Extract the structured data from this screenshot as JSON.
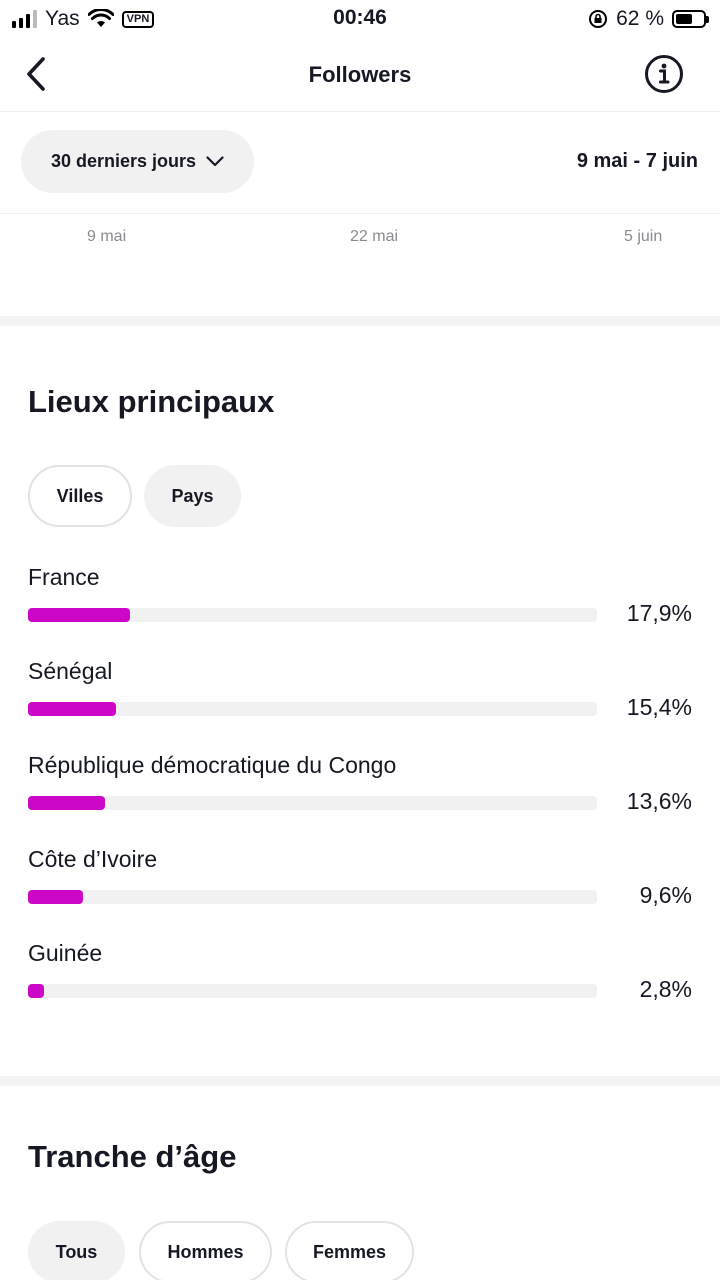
{
  "status_bar": {
    "carrier": "Yas",
    "vpn": "VPN",
    "time": "00:46",
    "battery": "62 %",
    "battery_level": 0.62
  },
  "header": {
    "title": "Followers"
  },
  "filter": {
    "range_label": "30 derniers jours",
    "date_range": "9 mai - 7 juin"
  },
  "chart_x_axis": {
    "ticks": [
      "9 mai",
      "22 mai",
      "5 juin"
    ]
  },
  "locations": {
    "title": "Lieux principaux",
    "tabs": [
      "Villes",
      "Pays"
    ],
    "items": [
      {
        "name": "France",
        "percent_label": "17,9%",
        "value": 17.9
      },
      {
        "name": "Sénégal",
        "percent_label": "15,4%",
        "value": 15.4
      },
      {
        "name": "République démocratique du Congo",
        "percent_label": "13,6%",
        "value": 13.6
      },
      {
        "name": "Côte d’Ivoire",
        "percent_label": "9,6%",
        "value": 9.6
      },
      {
        "name": "Guinée",
        "percent_label": "2,8%",
        "value": 2.8
      }
    ],
    "bar_color": "#cc07c8"
  },
  "age": {
    "title": "Tranche d’âge",
    "tabs": [
      "Tous",
      "Hommes",
      "Femmes"
    ]
  }
}
